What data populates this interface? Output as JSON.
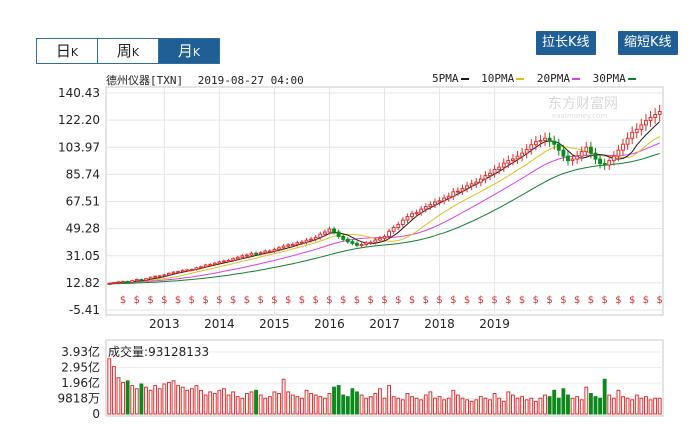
{
  "period_tabs": [
    {
      "label": "日",
      "suffix": "K",
      "active": false
    },
    {
      "label": "周",
      "suffix": "K",
      "active": false
    },
    {
      "label": "月",
      "suffix": "K",
      "active": true
    }
  ],
  "buttons": {
    "stretch": "拉长K线",
    "shorten": "缩短K线"
  },
  "stock": {
    "name": "德州仪器[TXN]",
    "datetime": "2019-08-27 04:00"
  },
  "ma_legend": [
    {
      "label": "5PMA",
      "color": "#1a1a1a"
    },
    {
      "label": "10PMA",
      "color": "#e0c020"
    },
    {
      "label": "20PMA",
      "color": "#e040e0"
    },
    {
      "label": "30PMA",
      "color": "#108030"
    }
  ],
  "watermark": {
    "brand": "东方财富网",
    "url": "eastmoney.com"
  },
  "volume": {
    "label": "成交量",
    "value": "93128133"
  },
  "colors": {
    "up": "#e03030",
    "down": "#0a8a1a",
    "tab_active": "#1f5f96"
  },
  "chart_data": [
    {
      "type": "candlestick",
      "title": "德州仪器[TXN]",
      "x_tick_labels": [
        "2013",
        "2014",
        "2015",
        "2016",
        "2017",
        "2018",
        "2019"
      ],
      "x_tick_months": [
        12,
        24,
        36,
        48,
        60,
        72,
        84
      ],
      "y_tick_labels": [
        "140.43",
        "122.20",
        "103.97",
        "85.74",
        "67.51",
        "49.28",
        "31.05",
        "12.82",
        "-5.41"
      ],
      "ylim": [
        -5.41,
        140.43
      ],
      "grid": true,
      "legend_placement": "top-right",
      "close": [
        12.5,
        13.0,
        13.5,
        13.8,
        13.2,
        14.3,
        15.1,
        14.5,
        15.6,
        16.6,
        17.3,
        17.5,
        18.2,
        19.2,
        20.0,
        20.4,
        21.2,
        21.5,
        21.8,
        22.9,
        23.6,
        24.8,
        25.2,
        26.0,
        26.9,
        27.5,
        27.9,
        29.0,
        30.0,
        31.0,
        31.5,
        32.7,
        32.5,
        33.1,
        34.2,
        34.2,
        35.3,
        36.4,
        37.5,
        38.3,
        38.7,
        39.8,
        40.2,
        41.5,
        42.2,
        43.4,
        45.6,
        47.0,
        49.0,
        47.0,
        44.0,
        42.1,
        40.5,
        39.4,
        38.1,
        38.6,
        39.6,
        40.1,
        41.6,
        42.8,
        44.0,
        47.5,
        50.0,
        52.1,
        55.0,
        57.4,
        59.3,
        60.0,
        62.4,
        64.1,
        65.4,
        67.2,
        68.0,
        69.8,
        71.0,
        74.0,
        74.5,
        76.2,
        78.0,
        79.4,
        80.5,
        82.6,
        84.9,
        86.5,
        89.0,
        90.6,
        93.3,
        95.1,
        96.1,
        98.0,
        100.0,
        102.5,
        105.7,
        107.7,
        108.5,
        110.0,
        108.0,
        106.0,
        102.0,
        98.0,
        95.0,
        96.0,
        98.0,
        101.0,
        104.0,
        100.0,
        96.0,
        93.0,
        92.0,
        95.0,
        98.0,
        102.0,
        106.0,
        110.0,
        114.0,
        116.0,
        119.0,
        122.0,
        124.0,
        126.0,
        128.0
      ],
      "ma5": [
        12.5,
        12.8,
        13.0,
        13.2,
        13.2,
        13.6,
        14.0,
        14.2,
        14.5,
        15.2,
        15.8,
        16.3,
        17.0,
        17.8,
        18.6,
        19.3,
        20.0,
        20.6,
        21.2,
        21.9,
        22.5,
        23.3,
        24.0,
        24.8,
        25.5,
        26.2,
        26.9,
        27.6,
        28.3,
        29.1,
        29.8,
        30.5,
        31.3,
        31.9,
        32.6,
        33.2,
        33.9,
        34.7,
        35.5,
        36.3,
        37.2,
        38.2,
        39.1,
        40.0,
        40.9,
        41.9,
        43.1,
        44.6,
        46.1,
        46.6,
        46.4,
        45.8,
        44.9,
        43.4,
        41.7,
        40.4,
        39.6,
        39.3,
        39.4,
        40.1,
        41.0,
        42.6,
        44.6,
        46.8,
        49.5,
        52.3,
        55.1,
        57.7,
        59.8,
        61.7,
        63.3,
        64.9,
        66.4,
        68.0,
        69.5,
        71.1,
        72.5,
        74.2,
        75.8,
        77.6,
        79.1,
        80.9,
        82.7,
        84.3,
        86.0,
        87.7,
        89.7,
        91.7,
        93.6,
        95.5,
        97.5,
        99.6,
        101.8,
        104.0,
        106.0,
        107.8,
        108.2,
        107.9,
        106.8,
        104.4,
        101.6,
        98.9,
        97.3,
        96.6,
        97.2,
        98.4,
        99.0,
        99.1,
        98.7,
        97.5,
        96.3,
        96.0,
        96.5,
        98.0,
        101.0,
        105.4,
        109.0,
        112.3,
        115.3,
        118.3,
        121.2
      ],
      "ma10": [
        12.5,
        12.8,
        13.0,
        13.2,
        13.3,
        13.5,
        13.8,
        14.0,
        14.2,
        14.5,
        14.9,
        15.2,
        15.6,
        16.1,
        16.6,
        17.2,
        17.9,
        18.6,
        19.4,
        20.1,
        20.8,
        21.5,
        22.2,
        22.9,
        23.6,
        24.3,
        25.0,
        25.7,
        26.5,
        27.3,
        28.0,
        28.7,
        29.5,
        30.3,
        31.0,
        31.7,
        32.4,
        33.2,
        34.0,
        34.8,
        35.6,
        36.5,
        37.3,
        38.2,
        39.0,
        39.9,
        40.9,
        42.0,
        43.2,
        44.1,
        44.8,
        45.2,
        45.4,
        45.4,
        45.1,
        44.7,
        44.1,
        43.4,
        42.6,
        41.8,
        41.1,
        40.8,
        40.8,
        41.3,
        42.2,
        43.6,
        45.4,
        47.4,
        49.6,
        51.9,
        54.1,
        56.2,
        58.4,
        60.4,
        62.3,
        64.2,
        66.0,
        67.7,
        69.3,
        71.0,
        72.5,
        74.2,
        75.9,
        77.6,
        79.3,
        81.0,
        82.8,
        84.7,
        86.7,
        88.6,
        90.5,
        92.5,
        94.7,
        96.8,
        98.8,
        100.9,
        102.6,
        104.0,
        104.7,
        104.5,
        103.9,
        103.4,
        102.9,
        102.0,
        100.8,
        99.9,
        99.3,
        98.8,
        98.1,
        97.8,
        97.6,
        97.3,
        97.0,
        97.0,
        97.8,
        100.0,
        102.3,
        105.0,
        107.4,
        109.5,
        111.2
      ],
      "ma20": [
        12.5,
        12.7,
        12.9,
        13.0,
        13.1,
        13.3,
        13.5,
        13.6,
        13.8,
        14.0,
        14.2,
        14.4,
        14.7,
        15.0,
        15.3,
        15.6,
        16.0,
        16.4,
        16.8,
        17.3,
        17.8,
        18.3,
        18.8,
        19.4,
        20.0,
        20.6,
        21.2,
        21.8,
        22.4,
        23.1,
        23.7,
        24.4,
        25.1,
        25.8,
        26.5,
        27.2,
        27.9,
        28.7,
        29.5,
        30.3,
        31.1,
        31.9,
        32.8,
        33.6,
        34.5,
        35.4,
        36.3,
        37.3,
        38.3,
        39.2,
        40.0,
        40.8,
        41.5,
        42.0,
        42.4,
        42.7,
        42.9,
        43.1,
        43.2,
        43.3,
        43.3,
        43.4,
        43.5,
        43.8,
        44.2,
        44.7,
        45.3,
        46.1,
        47.0,
        48.1,
        49.3,
        50.6,
        52.0,
        53.5,
        55.1,
        56.7,
        58.4,
        60.1,
        61.8,
        63.5,
        65.2,
        66.9,
        68.7,
        70.5,
        72.3,
        74.0,
        75.8,
        77.6,
        79.4,
        81.3,
        83.1,
        85.0,
        86.9,
        88.8,
        90.6,
        92.3,
        93.7,
        95.0,
        96.1,
        96.9,
        97.5,
        97.9,
        98.2,
        98.4,
        98.5,
        98.6,
        98.7,
        98.7,
        98.6,
        98.5,
        98.5,
        98.5,
        98.6,
        98.9,
        99.5,
        100.5,
        101.6,
        102.9,
        104.2,
        105.5,
        106.8
      ],
      "ma30": [
        12.0,
        12.2,
        12.3,
        12.4,
        12.5,
        12.6,
        12.8,
        12.9,
        13.0,
        13.2,
        13.3,
        13.5,
        13.7,
        13.9,
        14.1,
        14.3,
        14.6,
        14.8,
        15.1,
        15.4,
        15.7,
        16.0,
        16.4,
        16.8,
        17.2,
        17.6,
        18.0,
        18.5,
        18.9,
        19.4,
        19.9,
        20.4,
        20.9,
        21.5,
        22.0,
        22.6,
        23.2,
        23.8,
        24.4,
        25.1,
        25.7,
        26.4,
        27.1,
        27.8,
        28.6,
        29.3,
        30.1,
        30.9,
        31.7,
        32.5,
        33.3,
        34.0,
        34.7,
        35.3,
        35.9,
        36.4,
        36.9,
        37.3,
        37.7,
        38.0,
        38.3,
        38.6,
        38.9,
        39.3,
        39.7,
        40.2,
        40.7,
        41.3,
        42.0,
        42.8,
        43.6,
        44.5,
        45.5,
        46.5,
        47.6,
        48.8,
        50.0,
        51.3,
        52.7,
        54.1,
        55.5,
        57.0,
        58.5,
        60.1,
        61.7,
        63.3,
        65.0,
        66.7,
        68.4,
        70.2,
        71.9,
        73.7,
        75.5,
        77.3,
        79.0,
        80.7,
        82.3,
        83.8,
        85.1,
        86.3,
        87.3,
        88.2,
        89.0,
        89.7,
        90.3,
        90.8,
        91.3,
        91.7,
        92.0,
        92.3,
        92.6,
        92.9,
        93.3,
        93.8,
        94.4,
        95.1,
        95.9,
        96.8,
        97.8,
        98.8,
        99.8
      ]
    },
    {
      "type": "bar",
      "title": "成交量",
      "y_tick_labels": [
        "3.93亿",
        "2.95亿",
        "1.96亿",
        "9818万",
        "0"
      ],
      "ylim": [
        0,
        3.93
      ],
      "unit": "亿",
      "values": [
        3.5,
        3.0,
        2.3,
        2.0,
        2.1,
        1.8,
        1.6,
        1.9,
        1.7,
        1.5,
        1.8,
        1.6,
        1.9,
        2.0,
        2.1,
        1.8,
        1.7,
        1.5,
        1.6,
        1.8,
        1.5,
        1.2,
        1.4,
        1.3,
        1.5,
        1.6,
        1.2,
        1.4,
        1.1,
        1.0,
        1.3,
        1.4,
        1.5,
        1.2,
        1.0,
        1.1,
        1.4,
        1.3,
        2.2,
        1.4,
        1.2,
        1.1,
        1.0,
        1.5,
        1.3,
        1.2,
        1.1,
        1.0,
        1.3,
        1.7,
        1.8,
        1.2,
        1.1,
        1.6,
        1.4,
        1.2,
        1.0,
        1.1,
        1.3,
        1.6,
        1.0,
        1.8,
        1.1,
        1.0,
        0.9,
        1.3,
        1.1,
        1.0,
        0.9,
        1.2,
        1.4,
        1.0,
        1.1,
        0.9,
        1.0,
        1.5,
        1.2,
        1.0,
        0.9,
        0.8,
        0.9,
        1.1,
        1.0,
        0.9,
        1.3,
        1.0,
        0.8,
        1.4,
        1.2,
        1.0,
        1.1,
        0.9,
        1.0,
        0.8,
        1.0,
        1.2,
        1.1,
        1.5,
        1.0,
        1.6,
        1.2,
        1.0,
        1.1,
        0.9,
        1.7,
        1.3,
        1.1,
        1.0,
        2.2,
        1.2,
        1.0,
        1.5,
        1.1,
        1.0,
        0.9,
        1.2,
        1.0,
        1.1,
        0.9,
        1.0,
        1.0
      ]
    }
  ]
}
